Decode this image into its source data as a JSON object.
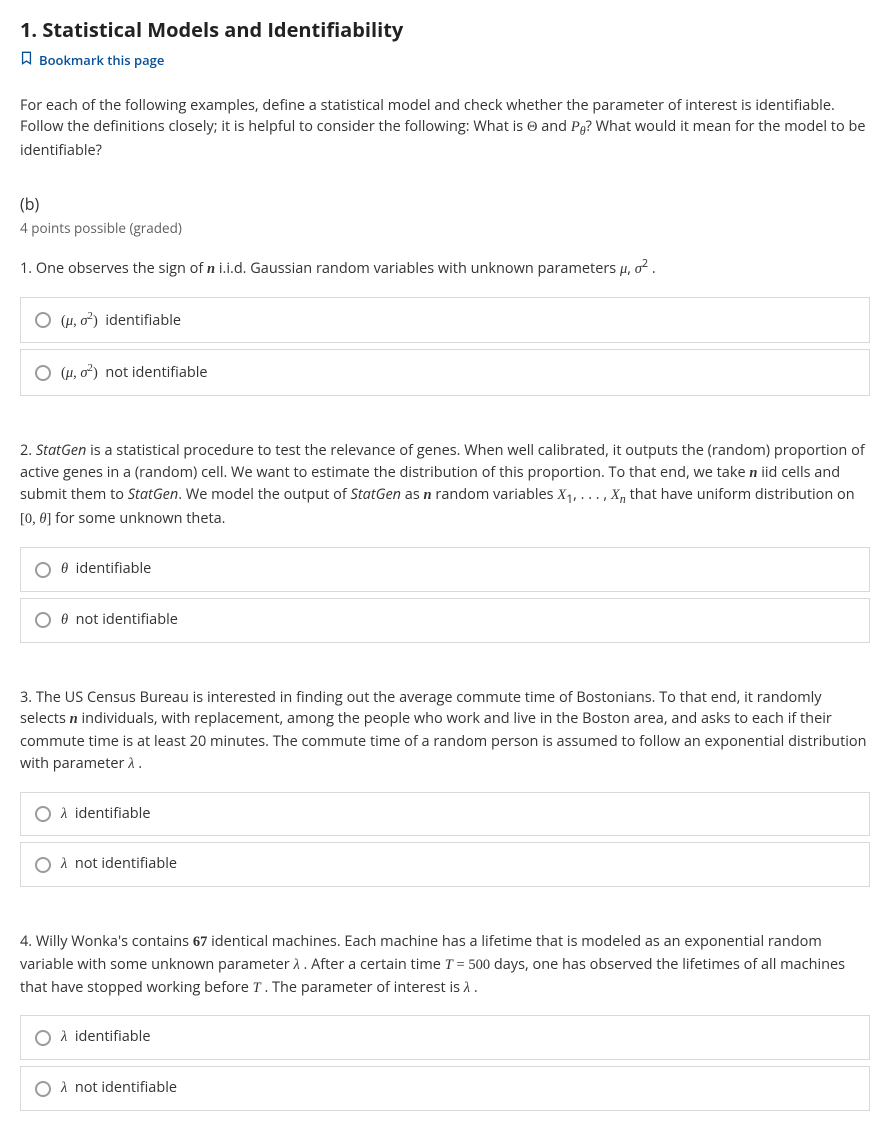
{
  "title": "1. Statistical Models and Identifiability",
  "bookmark_label": "Bookmark this page",
  "intro_html": "For each of the following examples, define a statistical model and check whether the parameter of interest is identifiable. Follow the definitions closely; it is helpful to consider the following: What is <span class='math-serif'>&Theta;</span> and <span class='mi'>P<sub>&theta;</sub></span>? What would it mean for the model to be identifiable?",
  "section_b_label": "(b)",
  "points_label": "4 points possible (graded)",
  "questions": [
    {
      "text_html": "1. One observes the sign of <span class='mi mb'>n</span> i.i.d. Gaussian random variables with unknown parameters <span class='mi'>&mu;</span>, <span class='mi'>&sigma;</span><sup>2</sup> .",
      "opt_a_html": "<span class='math-serif'>(<span class='mi'>&mu;</span>, <span class='mi'>&sigma;</span><sup>2</sup>)</span> &nbsp;identifiable",
      "opt_b_html": "<span class='math-serif'>(<span class='mi'>&mu;</span>, <span class='mi'>&sigma;</span><sup>2</sup>)</span> &nbsp;not identifiable"
    },
    {
      "text_html": "2. <span class='emph-it'>StatGen</span> is a statistical procedure to test the relevance of genes. When well calibrated, it outputs the (random) proportion of active genes in a (random) cell. We want to estimate the distribution of this proportion. To that end, we take <span class='mi mb'>n</span> iid cells and submit them to <span class='emph-it'>StatGen</span>. We model the output of <span class='emph-it'>StatGen</span> as <span class='mi mb'>n</span> random variables <span class='mi'>X</span><sub>1</sub>, . . . , <span class='mi'>X<sub>n</sub></span> that have uniform distribution on <span class='math-serif'>[0, <span class='mi'>&theta;</span>]</span> for some unknown theta.",
      "opt_a_html": "<span class='mi'>&theta;</span> &nbsp;identifiable",
      "opt_b_html": "<span class='mi'>&theta;</span> &nbsp;not identifiable"
    },
    {
      "text_html": "3. The US Census Bureau is interested in finding out the average commute time of Bostonians. To that end, it randomly selects <span class='mi mb'>n</span> individuals, with replacement, among the people who work and live in the Boston area, and asks to each if their commute time is at least 20 minutes. The commute time of a random person is assumed to follow an exponential distribution with parameter <span class='mi'>&lambda;</span> .",
      "opt_a_html": "<span class='mi'>&lambda;</span> &nbsp;identifiable",
      "opt_b_html": "<span class='mi'>&lambda;</span> &nbsp;not identifiable"
    },
    {
      "text_html": "4. Willy Wonka's contains <span class='mb'>67</span> identical machines. Each machine has a lifetime that is modeled as an exponential random variable with some unknown parameter <span class='mi'>&lambda;</span> . After a certain time <span class='mi'>T</span> <span class='math-serif'>= 500</span> days, one has observed the lifetimes of all machines that have stopped working before <span class='mi'>T</span> . The parameter of interest is <span class='mi'>&lambda;</span> .",
      "opt_a_html": "<span class='mi'>&lambda;</span> &nbsp;identifiable",
      "opt_b_html": "<span class='mi'>&lambda;</span> &nbsp;not identifiable"
    }
  ]
}
